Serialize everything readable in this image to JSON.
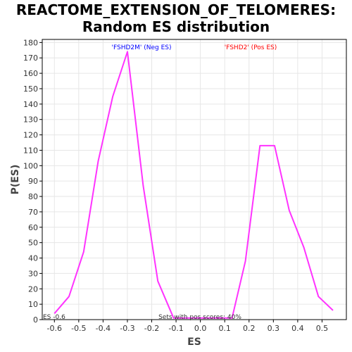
{
  "chart_data": {
    "type": "line",
    "title_line1": "REACTOME_EXTENSION_OF_TELOMERES:",
    "title_line2": "Random ES distribution",
    "xlabel": "ES",
    "ylabel": "P(ES)",
    "xlim": [
      -0.65,
      0.6
    ],
    "ylim": [
      0,
      182
    ],
    "x_ticks": [
      -0.6,
      -0.5,
      -0.4,
      -0.3,
      -0.2,
      -0.1,
      0.0,
      0.1,
      0.2,
      0.3,
      0.4,
      0.5
    ],
    "x_tick_labels": [
      "-0.6",
      "-0.5",
      "-0.4",
      "-0.3",
      "-0.2",
      "-0.1",
      "0.0",
      "0.1",
      "0.2",
      "0.3",
      "0.4",
      "0.5"
    ],
    "y_ticks": [
      0,
      10,
      20,
      30,
      40,
      50,
      60,
      70,
      80,
      90,
      100,
      110,
      120,
      130,
      140,
      150,
      160,
      170,
      180
    ],
    "series": [
      {
        "color": "#ff33ff",
        "x": [
          -0.6,
          -0.54,
          -0.48,
          -0.42,
          -0.36,
          -0.3,
          -0.235,
          -0.175,
          -0.11,
          -0.05,
          0.0,
          0.05,
          0.13,
          0.185,
          0.245,
          0.305,
          0.365,
          0.425,
          0.485,
          0.545
        ],
        "y": [
          4,
          15,
          44,
          103,
          145,
          174,
          87,
          25,
          1,
          1,
          1,
          1,
          1,
          38,
          113,
          113,
          71,
          47,
          15,
          6
        ]
      }
    ],
    "annotations": {
      "neg_label": "'FSHD2M' (Neg ES)",
      "neg_color": "#0000ff",
      "pos_label": "'FSHD2' (Pos ES)",
      "pos_color": "#ff0000",
      "sets_text": "Sets with pos scores: 40%",
      "es_text": "ES -0.6"
    }
  }
}
